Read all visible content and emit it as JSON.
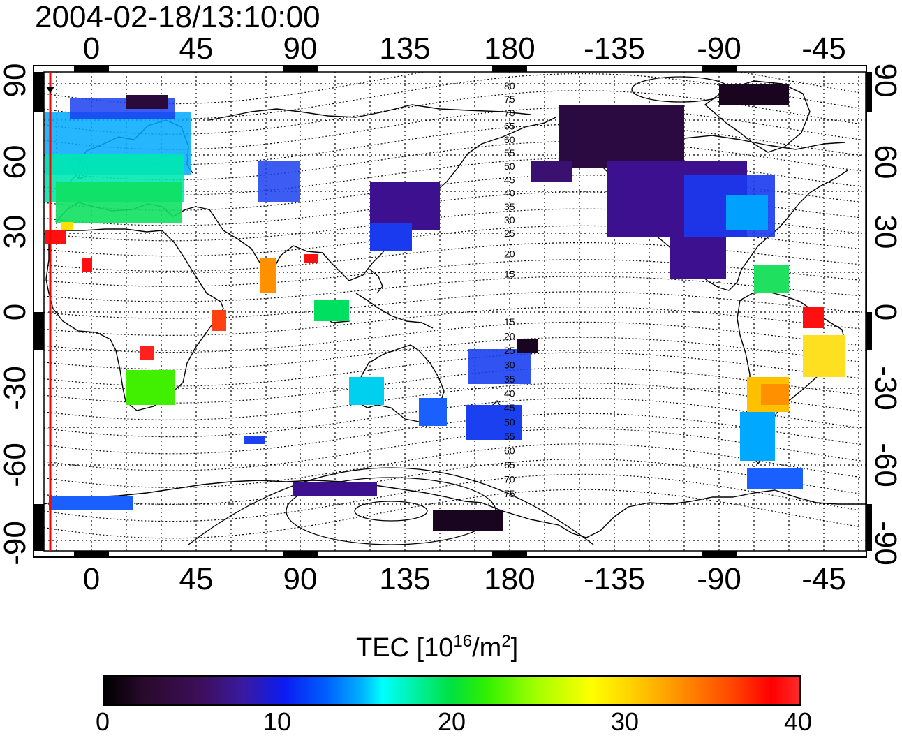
{
  "timestamp": "2004-02-18/13:10:00",
  "map": {
    "lon_tick_labels": [
      "0",
      "45",
      "90",
      "135",
      "180",
      "-135",
      "-90",
      "-45"
    ],
    "lat_tick_labels": [
      "90",
      "60",
      "30",
      "0",
      "-30",
      "-60",
      "-90"
    ],
    "contour_labels_north": [
      "80",
      "75",
      "70",
      "65",
      "60",
      "55",
      "50",
      "45",
      "40",
      "35",
      "30",
      "25",
      "20",
      "15"
    ],
    "contour_labels_south": [
      "15",
      "20",
      "25",
      "30",
      "35",
      "40",
      "45",
      "50",
      "55",
      "60",
      "65",
      "70",
      "75"
    ],
    "terminator_color": "#ff0000"
  },
  "colorbar": {
    "title_prefix": "TEC  [10",
    "title_exp1": "16",
    "title_mid": "/m",
    "title_exp2": "2",
    "title_suffix": "]",
    "min": 0,
    "max": 40,
    "tick_labels": [
      "0",
      "10",
      "20",
      "30",
      "40"
    ]
  }
}
